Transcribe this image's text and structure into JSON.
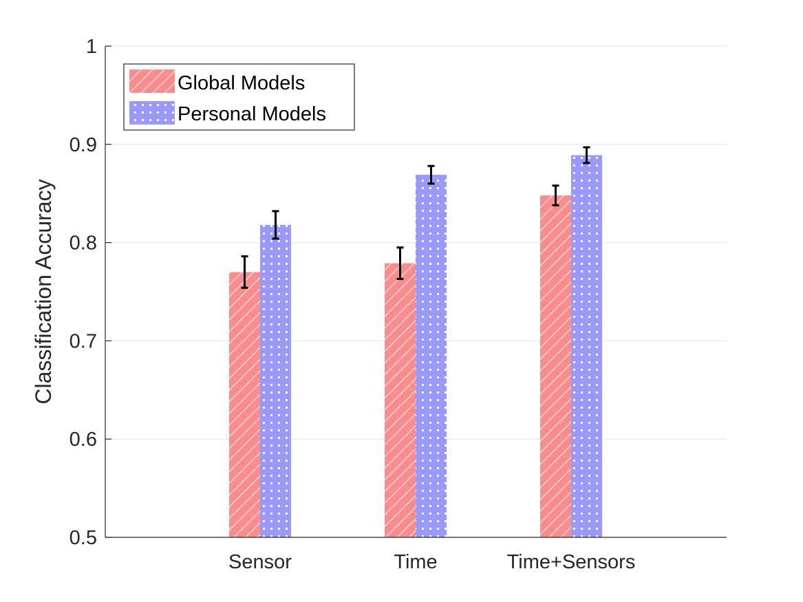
{
  "chart_data": {
    "type": "bar",
    "categories": [
      "Sensor",
      "Time",
      "Time+Sensors"
    ],
    "series": [
      {
        "name": "Global Models",
        "values": [
          0.77,
          0.779,
          0.848
        ],
        "error": [
          0.016,
          0.016,
          0.01
        ],
        "color": "#ff8c8c",
        "pattern": "diagonal-hatch"
      },
      {
        "name": "Personal Models",
        "values": [
          0.818,
          0.869,
          0.889
        ],
        "error": [
          0.014,
          0.009,
          0.008
        ],
        "color": "#9999ff",
        "pattern": "dots"
      }
    ],
    "title": "",
    "xlabel": "",
    "ylabel": "Classification Accuracy",
    "ylim": [
      0.5,
      1.0
    ],
    "yticks": [
      "0.5",
      "0.6",
      "0.7",
      "0.8",
      "0.9",
      "1"
    ],
    "grid": "horizontal",
    "legend_position": "top-left"
  }
}
